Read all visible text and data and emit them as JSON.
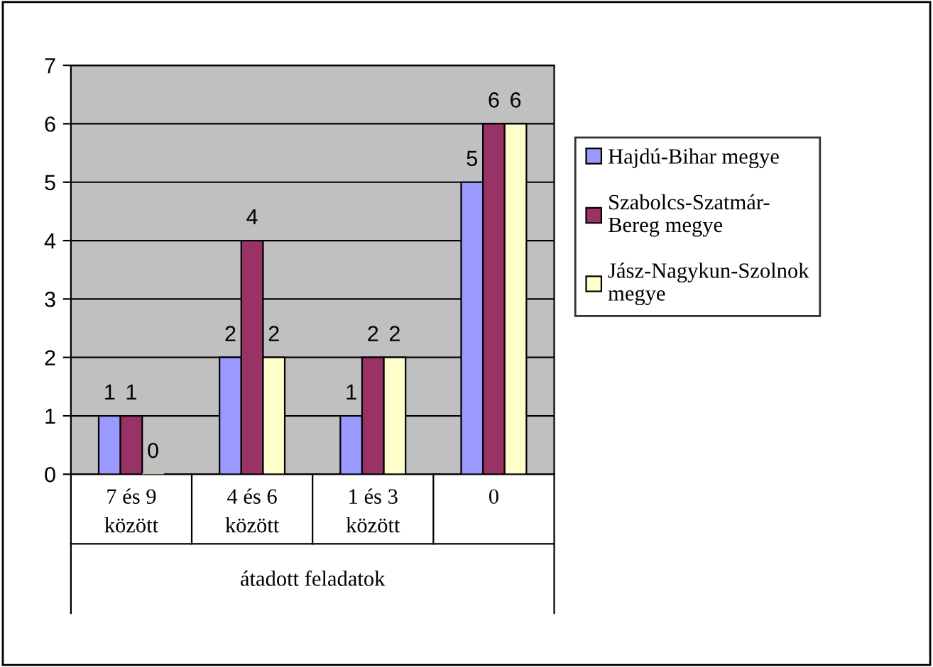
{
  "chart_data": {
    "type": "bar",
    "xlabel": "átadott feladatok",
    "categories": [
      "7 és 9 között",
      "4 és 6 között",
      "1 és 3 között",
      "0"
    ],
    "series": [
      {
        "name": "Hajdú-Bihar megye",
        "color": "#9999ff",
        "values": [
          1,
          2,
          1,
          5
        ]
      },
      {
        "name": "Szabolcs-Szatmár-Bereg megye",
        "color": "#993366",
        "values": [
          1,
          4,
          2,
          6
        ]
      },
      {
        "name": "Jász-Nagykun-Szolnok megye",
        "color": "#ffffcc",
        "values": [
          0,
          2,
          2,
          6
        ]
      }
    ],
    "ylim": [
      0,
      7
    ],
    "yticks": [
      0,
      1,
      2,
      3,
      4,
      5,
      6,
      7
    ],
    "grid": "y",
    "legend": "right",
    "data_labels": true
  }
}
